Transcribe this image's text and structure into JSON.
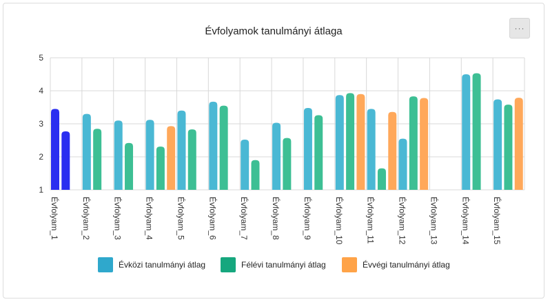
{
  "menu_label": "···",
  "colors": {
    "evkozi": "#4ab8d4",
    "evkozi_highlight": "#2a2ef0",
    "felevi": "#3dbf94",
    "felevi_highlight": "#2a2ef0",
    "evvegi": "#ffa85a",
    "grid": "#d8d8d8"
  },
  "chart_data": {
    "type": "bar",
    "title": "Évfolyamok tanulmányi átlaga",
    "xlabel": "",
    "ylabel": "",
    "ylim": [
      1,
      5
    ],
    "yticks": [
      1,
      2,
      3,
      4,
      5
    ],
    "grid": true,
    "legend_position": "bottom",
    "categories": [
      "Évfolyam_1",
      "Évfolyam_2",
      "Évfolyam_3",
      "Évfolyam_4",
      "Évfolyam_5",
      "Évfolyam_6",
      "Évfolyam_7",
      "Évfolyam_8",
      "Évfolyam_9",
      "Évfolyam_10",
      "Évfolyam_11",
      "Évfolyam_12",
      "Évfolyam_13",
      "Évfolyam_14",
      "Évfolyam_15"
    ],
    "highlighted_category": "Évfolyam_1",
    "series": [
      {
        "name": "Évközi tanulmányi átlag",
        "key": "evkozi",
        "values": [
          3.45,
          3.3,
          3.1,
          3.12,
          3.4,
          3.67,
          2.52,
          3.03,
          3.48,
          3.87,
          3.45,
          2.55,
          null,
          4.5,
          3.74
        ]
      },
      {
        "name": "Félévi tanulmányi átlag",
        "key": "felevi",
        "values": [
          2.77,
          2.85,
          2.42,
          2.31,
          2.83,
          3.55,
          1.9,
          2.57,
          3.26,
          3.93,
          1.65,
          3.83,
          null,
          4.53,
          3.58
        ]
      },
      {
        "name": "Évvégi tanulmányi átlag",
        "key": "evvegi",
        "values": [
          null,
          null,
          null,
          2.93,
          null,
          null,
          null,
          null,
          null,
          3.9,
          3.36,
          3.78,
          null,
          null,
          3.79
        ]
      }
    ]
  }
}
